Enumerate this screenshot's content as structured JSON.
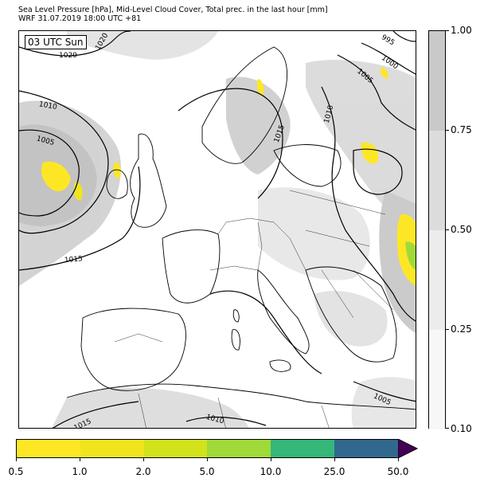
{
  "title": {
    "line1": "Sea Level Pressure [hPa], Mid-Level Cloud Cover, Total prec. in the last hour [mm]",
    "line2": "WRF 31.07.2019 18:00 UTC +81"
  },
  "map": {
    "time_label": "03 UTC Sun",
    "isobar_labels": [
      "1020",
      "1020",
      "995",
      "1000",
      "1005",
      "1010",
      "1005",
      "1015",
      "1010",
      "1015",
      "1015",
      "1010",
      "1005"
    ]
  },
  "cloud_colorbar": {
    "ticks": [
      "1.00",
      "0.75",
      "0.50",
      "0.25",
      "0.10"
    ],
    "colors": [
      "#c9c9c9",
      "#dcdcdc",
      "#ececec",
      "#f7f7f7"
    ]
  },
  "precip_colorbar": {
    "ticks": [
      "0.5",
      "1.0",
      "2.0",
      "5.0",
      "10.0",
      "25.0",
      "50.0"
    ],
    "colors": [
      "#fde725",
      "#f0e41e",
      "#d2e21b",
      "#a0da39",
      "#35b779",
      "#31688e",
      "#3b528b"
    ],
    "extend_color": "#440154"
  }
}
